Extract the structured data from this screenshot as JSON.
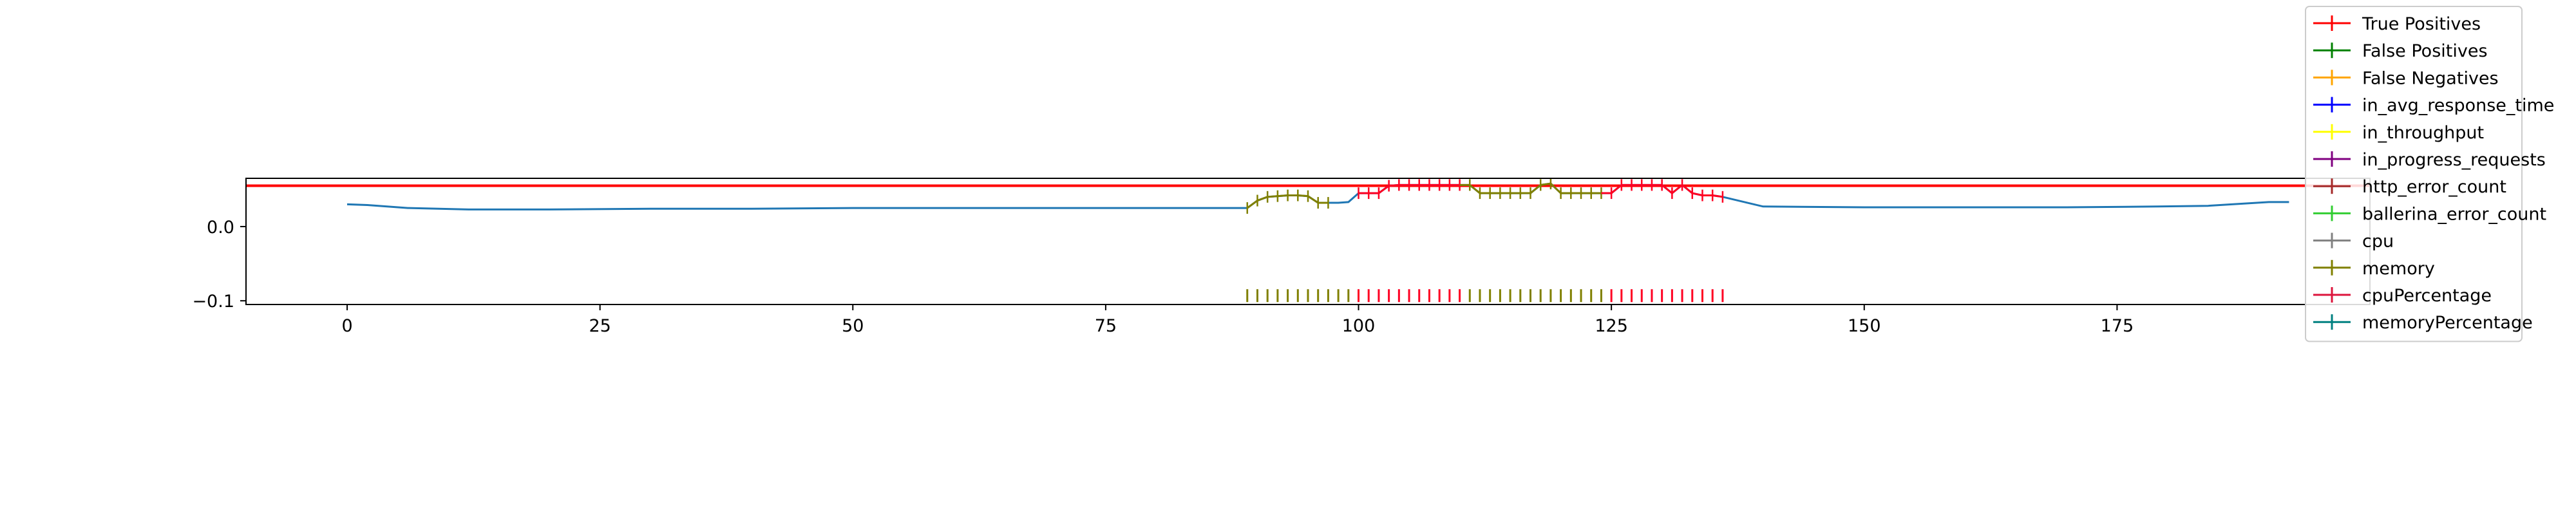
{
  "chart_data": {
    "type": "line",
    "title": "",
    "xlabel": "",
    "ylabel": "",
    "xlim": [
      -10,
      200
    ],
    "ylim": [
      -0.105,
      0.065
    ],
    "x_ticks": [
      0,
      25,
      50,
      75,
      100,
      125,
      150,
      175
    ],
    "x_tick_labels": [
      "0",
      "25",
      "50",
      "75",
      "100",
      "125",
      "150",
      "175"
    ],
    "y_ticks": [
      0.0,
      -0.1
    ],
    "y_tick_labels": [
      "0.0",
      "−0.1"
    ],
    "grid": false,
    "legend_position": "top-right",
    "threshold_line": {
      "series": "True Positives",
      "y": 0.055,
      "color": "#ff0000"
    },
    "main_series": {
      "color": "#1f77b4",
      "x": [
        0,
        2,
        6,
        12,
        20,
        30,
        40,
        50,
        60,
        70,
        80,
        89,
        90,
        91,
        92,
        93,
        94,
        95,
        96,
        97,
        98,
        99,
        100,
        101,
        102,
        103,
        104,
        105,
        106,
        107,
        108,
        109,
        110,
        111,
        112,
        113,
        114,
        115,
        116,
        117,
        118,
        119,
        120,
        121,
        122,
        123,
        124,
        125,
        126,
        127,
        128,
        129,
        130,
        131,
        132,
        133,
        134,
        135,
        136,
        140,
        150,
        160,
        170,
        179,
        184,
        190,
        192
      ],
      "y": [
        0.03,
        0.029,
        0.025,
        0.023,
        0.023,
        0.024,
        0.024,
        0.025,
        0.025,
        0.025,
        0.025,
        0.025,
        0.035,
        0.04,
        0.041,
        0.042,
        0.042,
        0.041,
        0.032,
        0.032,
        0.032,
        0.033,
        0.045,
        0.045,
        0.045,
        0.055,
        0.056,
        0.056,
        0.056,
        0.056,
        0.056,
        0.056,
        0.056,
        0.056,
        0.045,
        0.045,
        0.045,
        0.045,
        0.045,
        0.045,
        0.056,
        0.058,
        0.045,
        0.045,
        0.045,
        0.045,
        0.045,
        0.045,
        0.056,
        0.056,
        0.056,
        0.056,
        0.056,
        0.045,
        0.056,
        0.045,
        0.042,
        0.042,
        0.04,
        0.027,
        0.026,
        0.026,
        0.026,
        0.027,
        0.028,
        0.033,
        0.033
      ]
    },
    "segment_colors": [
      {
        "from": 89,
        "to": 97,
        "color": "#808000"
      },
      {
        "from": 100,
        "to": 110,
        "color": "#ff0022"
      },
      {
        "from": 111,
        "to": 124,
        "color": "#808000"
      },
      {
        "from": 125,
        "to": 136,
        "color": "#ff0022"
      }
    ],
    "rug_marks": {
      "y": -0.1,
      "x_from": 89,
      "x_to": 136
    },
    "series": [
      {
        "name": "True Positives",
        "color": "#ff0000"
      },
      {
        "name": "False Positives",
        "color": "#008000"
      },
      {
        "name": "False Negatives",
        "color": "#ffa500"
      },
      {
        "name": "in_avg_response_time",
        "color": "#0000ff"
      },
      {
        "name": "in_throughput",
        "color": "#ffff00"
      },
      {
        "name": "in_progress_requests",
        "color": "#800080"
      },
      {
        "name": "http_error_count",
        "color": "#a52a2a"
      },
      {
        "name": "ballerina_error_count",
        "color": "#32cd32"
      },
      {
        "name": "cpu",
        "color": "#808080"
      },
      {
        "name": "memory",
        "color": "#808000"
      },
      {
        "name": "cpuPercentage",
        "color": "#dc143c"
      },
      {
        "name": "memoryPercentage",
        "color": "#008080"
      }
    ]
  }
}
